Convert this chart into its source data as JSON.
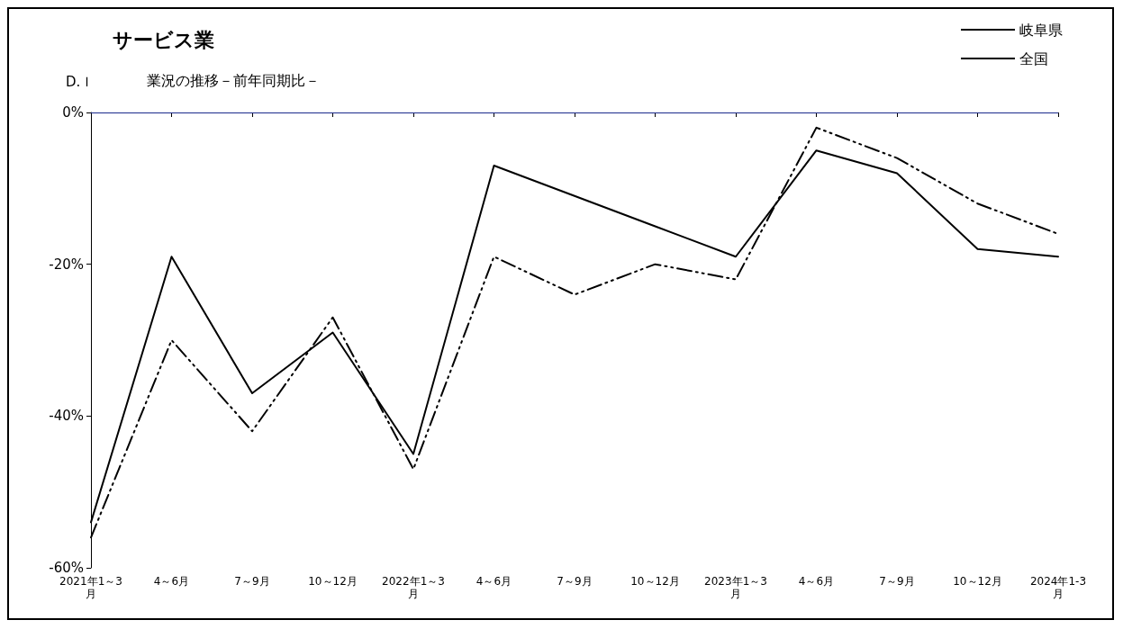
{
  "chart_data": {
    "type": "line",
    "title": "サービス業",
    "subtitle": "業況の推移－前年同期比－",
    "ylabel": "D.Ｉ",
    "categories": [
      "2021年1～3月",
      "4～6月",
      "7～9月",
      "10～12月",
      "2022年1～3月",
      "4～6月",
      "7～9月",
      "10～12月",
      "2023年1～3月",
      "4～6月",
      "7～9月",
      "10～12月",
      "2024年1-3月"
    ],
    "series": [
      {
        "name": "岐阜県",
        "color": "#000000",
        "line_style": "solid",
        "values": [
          -54,
          -19,
          -37,
          -29,
          -45,
          -7,
          -11,
          -15,
          -19,
          -5,
          -8,
          -18,
          -19
        ]
      },
      {
        "name": "全国",
        "color": "#000000",
        "line_style": "dashed",
        "values": [
          -56,
          -30,
          -42,
          -27,
          -47,
          -19,
          -24,
          -20,
          -22,
          -2,
          -6,
          -12,
          -16
        ]
      }
    ],
    "ylim": [
      -60,
      0
    ],
    "yticks": [
      {
        "value": -60,
        "label": "-60%"
      },
      {
        "value": -40,
        "label": "-40%"
      },
      {
        "value": -20,
        "label": "-20%"
      },
      {
        "value": 0,
        "label": "0%"
      }
    ],
    "ref_lines": [
      {
        "axis": "y",
        "value": 0,
        "color": "#1a2a8c"
      }
    ],
    "grid": false,
    "legend": "top right",
    "marker": "none"
  }
}
